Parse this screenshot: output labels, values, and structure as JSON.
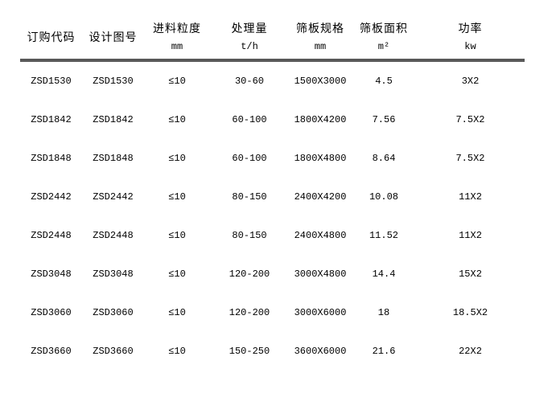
{
  "table": {
    "divider_color": "#595959",
    "text_color": "#000000",
    "background_color": "#ffffff",
    "columns": [
      {
        "label": "订购代码",
        "unit": ""
      },
      {
        "label": "设计图号",
        "unit": ""
      },
      {
        "label": "进料粒度",
        "unit": "mm"
      },
      {
        "label": "处理量",
        "unit": "t/h"
      },
      {
        "label": "筛板规格",
        "unit": "mm"
      },
      {
        "label": "筛板面积",
        "unit": "m²"
      },
      {
        "label": "功率",
        "unit": "kw"
      }
    ],
    "rows": [
      [
        "ZSD1530",
        "ZSD1530",
        "≤10",
        "30-60",
        "1500X3000",
        "4.5",
        "3X2"
      ],
      [
        "ZSD1842",
        "ZSD1842",
        "≤10",
        "60-100",
        "1800X4200",
        "7.56",
        "7.5X2"
      ],
      [
        "ZSD1848",
        "ZSD1848",
        "≤10",
        "60-100",
        "1800X4800",
        "8.64",
        "7.5X2"
      ],
      [
        "ZSD2442",
        "ZSD2442",
        "≤10",
        "80-150",
        "2400X4200",
        "10.08",
        "11X2"
      ],
      [
        "ZSD2448",
        "ZSD2448",
        "≤10",
        "80-150",
        "2400X4800",
        "11.52",
        "11X2"
      ],
      [
        "ZSD3048",
        "ZSD3048",
        "≤10",
        "120-200",
        "3000X4800",
        "14.4",
        "15X2"
      ],
      [
        "ZSD3060",
        "ZSD3060",
        "≤10",
        "120-200",
        "3000X6000",
        "18",
        "18.5X2"
      ],
      [
        "ZSD3660",
        "ZSD3660",
        "≤10",
        "150-250",
        "3600X6000",
        "21.6",
        "22X2"
      ]
    ]
  }
}
